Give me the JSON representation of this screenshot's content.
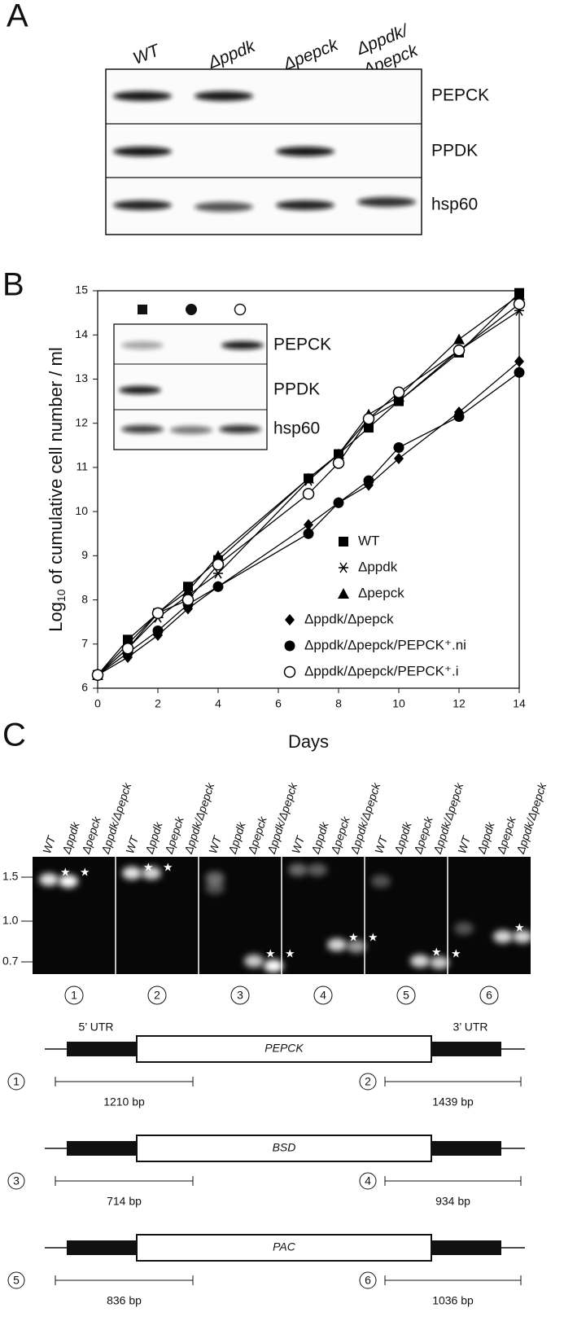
{
  "panel_a": {
    "label": "A",
    "lanes": [
      [
        "WT"
      ],
      [
        "Δppdk"
      ],
      [
        "Δpepck"
      ],
      [
        "Δppdk/",
        "Δpepck"
      ]
    ],
    "rows": [
      "PEPCK",
      "PPDK",
      "hsp60"
    ]
  },
  "chart_data": {
    "type": "line",
    "panel_label": "B",
    "x_label": "Days",
    "y_label": [
      "Log",
      "10",
      " of cumulative cell number / ml"
    ],
    "x": [
      0,
      1,
      2,
      3,
      4,
      7,
      8,
      9,
      10,
      12,
      14
    ],
    "xlim": [
      0,
      14
    ],
    "xticks": [
      0,
      2,
      4,
      6,
      8,
      10,
      12,
      14
    ],
    "ylim": [
      6,
      15
    ],
    "yticks": [
      6,
      7,
      8,
      9,
      10,
      11,
      12,
      13,
      14,
      15
    ],
    "legend": "lower right",
    "series": [
      {
        "name": "WT",
        "color": "#000000",
        "marker": "square",
        "values": [
          6.3,
          7.1,
          7.7,
          8.3,
          8.9,
          10.75,
          11.3,
          11.9,
          12.5,
          13.6,
          14.95
        ]
      },
      {
        "name": "Δppdk",
        "color": "#000000",
        "marker": "asterisk",
        "values": [
          6.3,
          6.9,
          7.6,
          8.1,
          8.6,
          10.7,
          11.3,
          12.1,
          12.5,
          13.65,
          14.55
        ]
      },
      {
        "name": "Δpepck",
        "color": "#000000",
        "marker": "triangle",
        "values": [
          6.3,
          7.0,
          7.7,
          8.2,
          9.0,
          10.75,
          11.3,
          12.2,
          12.6,
          13.9,
          14.9
        ]
      },
      {
        "name": "Δppdk/Δpepck",
        "color": "#000000",
        "marker": "diamond",
        "values": [
          6.3,
          6.7,
          7.2,
          7.8,
          8.3,
          9.7,
          10.2,
          10.6,
          11.2,
          12.25,
          13.4
        ]
      },
      {
        "name": "Δppdk/Δpepck/PEPCK⁺.ni",
        "color": "#000000",
        "marker": "circle",
        "values": [
          6.3,
          6.8,
          7.3,
          7.9,
          8.3,
          9.5,
          10.2,
          10.7,
          11.45,
          12.15,
          13.15
        ]
      },
      {
        "name": "Δppdk/Δpepck/PEPCK⁺.i",
        "color": "#000000",
        "marker": "open-circle",
        "values": [
          6.3,
          6.9,
          7.7,
          8.0,
          8.8,
          10.4,
          11.1,
          12.1,
          12.7,
          13.65,
          14.7
        ]
      }
    ],
    "inset": {
      "rows": [
        "PEPCK",
        "PPDK",
        "hsp60"
      ]
    }
  },
  "panel_c": {
    "label": "C",
    "lanes": [
      "WT",
      "Δppdk",
      "Δpepck",
      "Δppdk/Δpepck"
    ],
    "size_markers": [
      "1.5",
      "1.0",
      "0.7"
    ],
    "gel_numbers": [
      "1",
      "2",
      "3",
      "4",
      "5",
      "6"
    ],
    "diagrams": [
      {
        "utr5": "5’ UTR",
        "utr3": "3’ UTR",
        "gene": "PEPCK",
        "left": {
          "number": "1",
          "size": "1210 bp"
        },
        "right": {
          "number": "2",
          "size": "1439 bp"
        }
      },
      {
        "gene": "BSD",
        "left": {
          "number": "3",
          "size": "714 bp"
        },
        "right": {
          "number": "4",
          "size": "934 bp"
        }
      },
      {
        "gene": "PAC",
        "left": {
          "number": "5",
          "size": "836 bp"
        },
        "right": {
          "number": "6",
          "size": "1036 bp"
        }
      }
    ]
  }
}
